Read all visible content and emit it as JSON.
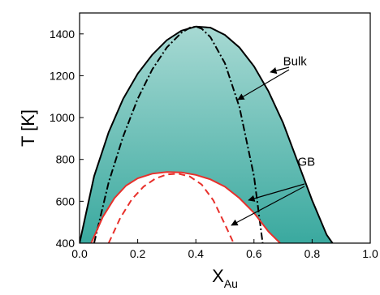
{
  "chart_data": {
    "type": "line",
    "title": "",
    "ylabel": "T [K]",
    "xlabel_main": "X",
    "xlabel_sub": "Au",
    "xlim": [
      0.0,
      1.0
    ],
    "ylim": [
      400,
      1500
    ],
    "xticks": [
      0.0,
      0.2,
      0.4,
      0.6,
      0.8,
      1.0
    ],
    "xtick_labels": [
      "0.0",
      "0.2",
      "0.4",
      "0.6",
      "0.8",
      "1.0"
    ],
    "yticks": [
      400,
      600,
      800,
      1000,
      1200,
      1400
    ],
    "ytick_labels": [
      "400",
      "600",
      "800",
      "1000",
      "1200",
      "1400"
    ],
    "grid": false,
    "colors": {
      "bulk_fill_top": "#a7d9d3",
      "bulk_fill_bottom": "#3aa99f",
      "bulk_line": "#000000",
      "gb_line": "#e8302b",
      "gb_fill": "#ffffff"
    },
    "series": [
      {
        "style": "solid",
        "color": "#000000",
        "x": [
          0.0,
          0.05,
          0.1,
          0.15,
          0.2,
          0.25,
          0.3,
          0.35,
          0.4,
          0.45,
          0.5,
          0.55,
          0.6,
          0.65,
          0.7,
          0.75,
          0.8,
          0.85,
          0.87
        ],
        "y": [
          400,
          720,
          930,
          1090,
          1210,
          1300,
          1370,
          1415,
          1435,
          1430,
          1395,
          1335,
          1245,
          1125,
          975,
          790,
          605,
          440,
          400
        ]
      },
      {
        "style": "dash-dot",
        "color": "#000000",
        "x": [
          0.05,
          0.1,
          0.15,
          0.2,
          0.25,
          0.3,
          0.35,
          0.38,
          0.4,
          0.42,
          0.45,
          0.5,
          0.55,
          0.6,
          0.63
        ],
        "y": [
          400,
          690,
          910,
          1090,
          1230,
          1335,
          1405,
          1430,
          1435,
          1425,
          1385,
          1260,
          1050,
          720,
          400
        ]
      },
      {
        "style": "solid",
        "color": "#e8302b",
        "x": [
          0.04,
          0.08,
          0.12,
          0.16,
          0.2,
          0.25,
          0.3,
          0.35,
          0.4,
          0.45,
          0.5,
          0.55,
          0.6,
          0.65,
          0.69
        ],
        "y": [
          400,
          525,
          615,
          675,
          710,
          732,
          740,
          738,
          726,
          705,
          670,
          615,
          545,
          455,
          400
        ]
      },
      {
        "style": "dashed",
        "color": "#e8302b",
        "x": [
          0.1,
          0.14,
          0.18,
          0.22,
          0.26,
          0.3,
          0.34,
          0.38,
          0.42,
          0.46,
          0.5,
          0.53
        ],
        "y": [
          400,
          520,
          610,
          670,
          708,
          728,
          732,
          718,
          680,
          605,
          490,
          400
        ]
      }
    ],
    "annotations": [
      {
        "text": "Bulk",
        "x": 0.7,
        "y": 1250
      },
      {
        "text": "GB",
        "x": 0.75,
        "y": 770
      }
    ]
  }
}
